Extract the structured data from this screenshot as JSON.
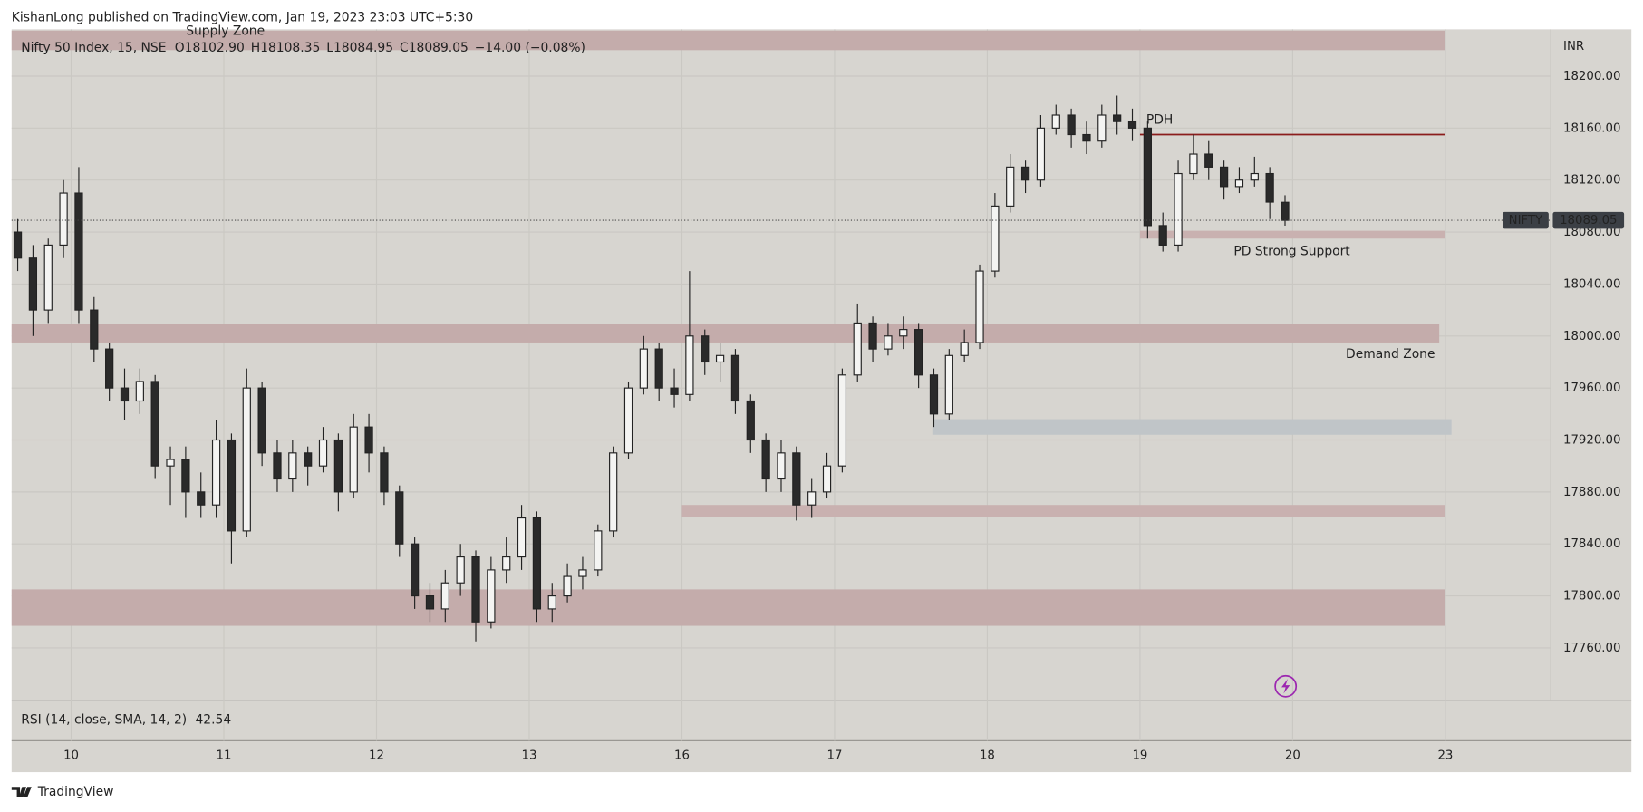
{
  "header": "KishanLong published on TradingView.com, Jan 19, 2023 23:03 UTC+5:30",
  "footer": "TradingView",
  "chart_data": {
    "type": "candlestick",
    "legend": {
      "symbol": "Nifty 50 Index, 15, NSE",
      "open": "O18102.90",
      "high": "H18108.35",
      "low": "L18084.95",
      "close": "C18089.05",
      "change": "−14.00 (−0.08%)"
    },
    "currency": "INR",
    "price_tag": {
      "name": "NIFTY",
      "value": "18089.05"
    },
    "rsi": {
      "label": "RSI (14, close, SMA, 14, 2)",
      "value": "42.54"
    },
    "xlim": [
      -0.39,
      9.69
    ],
    "xticks": [
      {
        "value": 0,
        "label": "10"
      },
      {
        "value": 1,
        "label": "11"
      },
      {
        "value": 2,
        "label": "12"
      },
      {
        "value": 3,
        "label": "13"
      },
      {
        "value": 4,
        "label": "16"
      },
      {
        "value": 5,
        "label": "17"
      },
      {
        "value": 6,
        "label": "18"
      },
      {
        "value": 7,
        "label": "19"
      },
      {
        "value": 8,
        "label": "20"
      },
      {
        "value": 9,
        "label": "23"
      }
    ],
    "ylim": [
      17720,
      18236
    ],
    "yticks": [
      {
        "value": 17760,
        "label": "17760.00"
      },
      {
        "value": 17800,
        "label": "17800.00"
      },
      {
        "value": 17840,
        "label": "17840.00"
      },
      {
        "value": 17880,
        "label": "17880.00"
      },
      {
        "value": 17920,
        "label": "17920.00"
      },
      {
        "value": 17960,
        "label": "17960.00"
      },
      {
        "value": 18000,
        "label": "18000.00"
      },
      {
        "value": 18040,
        "label": "18040.00"
      },
      {
        "value": 18080,
        "label": "18080.00"
      },
      {
        "value": 18120,
        "label": "18120.00"
      },
      {
        "value": 18160,
        "label": "18160.00"
      },
      {
        "value": 18200,
        "label": "18200.00"
      }
    ],
    "grid": true,
    "x": [
      -0.35,
      -0.25,
      -0.15,
      -0.05,
      0.05,
      0.15,
      0.25,
      0.35,
      0.45,
      0.55,
      0.65,
      0.75,
      0.85,
      0.95,
      1.05,
      1.15,
      1.25,
      1.35,
      1.45,
      1.55,
      1.65,
      1.75,
      1.85,
      1.95,
      2.05,
      2.15,
      2.25,
      2.35,
      2.45,
      2.55,
      2.65,
      2.75,
      2.85,
      2.95,
      3.05,
      3.15,
      3.25,
      3.35,
      3.45,
      3.55,
      3.65,
      3.75,
      3.85,
      3.95,
      4.05,
      4.15,
      4.25,
      4.35,
      4.45,
      4.55,
      4.65,
      4.75,
      4.85,
      4.95,
      5.05,
      5.15,
      5.25,
      5.35,
      5.45,
      5.55,
      5.65,
      5.75,
      5.85,
      5.95,
      6.05,
      6.15,
      6.25,
      6.35,
      6.45,
      6.55,
      6.65,
      6.75,
      6.85,
      6.95,
      7.05,
      7.15,
      7.25,
      7.35,
      7.45,
      7.55,
      7.65,
      7.75,
      7.85,
      7.95
    ],
    "open": [
      18080,
      18060,
      18020,
      18070,
      18110,
      18020,
      17990,
      17960,
      17950,
      17965,
      17900,
      17905,
      17880,
      17870,
      17920,
      17850,
      17960,
      17910,
      17890,
      17910,
      17900,
      17920,
      17880,
      17930,
      17910,
      17880,
      17840,
      17800,
      17790,
      17810,
      17830,
      17780,
      17820,
      17830,
      17860,
      17790,
      17800,
      17815,
      17820,
      17850,
      17910,
      17960,
      17990,
      17960,
      17955,
      18000,
      17980,
      17985,
      17950,
      17920,
      17890,
      17910,
      17870,
      17880,
      17900,
      17970,
      18010,
      17990,
      18000,
      18005,
      17970,
      17940,
      17985,
      17995,
      18050,
      18100,
      18130,
      18120,
      18160,
      18170,
      18155,
      18150,
      18170,
      18165,
      18160,
      18085,
      18070,
      18125,
      18140,
      18130,
      18115,
      18120,
      18125,
      18102.9
    ],
    "high": [
      18090,
      18070,
      18075,
      18120,
      18130,
      18030,
      17995,
      17975,
      17975,
      17970,
      17915,
      17915,
      17895,
      17935,
      17925,
      17975,
      17965,
      17920,
      17920,
      17915,
      17930,
      17925,
      17940,
      17940,
      17915,
      17885,
      17845,
      17810,
      17820,
      17840,
      17835,
      17830,
      17845,
      17870,
      17865,
      17810,
      17825,
      17830,
      17855,
      17915,
      17965,
      18000,
      17995,
      17975,
      18050,
      18005,
      17995,
      17990,
      17955,
      17925,
      17920,
      17915,
      17890,
      17910,
      17975,
      18025,
      18015,
      18010,
      18015,
      18010,
      17975,
      17990,
      18005,
      18055,
      18110,
      18140,
      18135,
      18170,
      18178,
      18175,
      18165,
      18178,
      18185,
      18175,
      18165,
      18095,
      18135,
      18155,
      18150,
      18135,
      18130,
      18138,
      18130,
      18108.35
    ],
    "low": [
      18050,
      18000,
      18010,
      18060,
      18010,
      17980,
      17950,
      17935,
      17940,
      17890,
      17870,
      17860,
      17860,
      17860,
      17825,
      17845,
      17900,
      17880,
      17880,
      17885,
      17895,
      17865,
      17875,
      17895,
      17870,
      17830,
      17790,
      17780,
      17780,
      17800,
      17765,
      17775,
      17810,
      17820,
      17780,
      17780,
      17795,
      17805,
      17815,
      17845,
      17905,
      17955,
      17950,
      17945,
      17950,
      17970,
      17965,
      17940,
      17910,
      17880,
      17880,
      17858,
      17860,
      17875,
      17895,
      17965,
      17980,
      17985,
      17990,
      17960,
      17930,
      17935,
      17980,
      17990,
      18045,
      18095,
      18110,
      18115,
      18155,
      18145,
      18140,
      18145,
      18155,
      18150,
      18075,
      18065,
      18065,
      18120,
      18120,
      18105,
      18110,
      18115,
      18090,
      18084.95
    ],
    "close": [
      18060,
      18020,
      18070,
      18110,
      18020,
      17990,
      17960,
      17950,
      17965,
      17900,
      17905,
      17880,
      17870,
      17920,
      17850,
      17960,
      17910,
      17890,
      17910,
      17900,
      17920,
      17880,
      17930,
      17910,
      17880,
      17840,
      17800,
      17790,
      17810,
      17830,
      17780,
      17820,
      17830,
      17860,
      17790,
      17800,
      17815,
      17820,
      17850,
      17910,
      17960,
      17990,
      17960,
      17955,
      18000,
      17980,
      17985,
      17950,
      17920,
      17890,
      17910,
      17870,
      17880,
      17900,
      17970,
      18010,
      17990,
      18000,
      18005,
      17970,
      17940,
      17985,
      17995,
      18050,
      18100,
      18130,
      18120,
      18160,
      18170,
      18155,
      18150,
      18170,
      18165,
      18160,
      18085,
      18070,
      18125,
      18140,
      18130,
      18115,
      18120,
      18125,
      18103.05,
      18089.05
    ],
    "zones": [
      {
        "from": 18235,
        "to": 18220,
        "x0": -0.39,
        "x1": 9.0,
        "color": "#c4acab"
      },
      {
        "from": 18009,
        "to": 17995,
        "x0": -0.39,
        "x1": 8.96,
        "color": "#c4acab"
      },
      {
        "from": 18081,
        "to": 18075,
        "x0": 7.0,
        "x1": 9.0,
        "color": "#c9b1b0"
      },
      {
        "from": 17936,
        "to": 17924,
        "x0": 5.64,
        "x1": 9.04,
        "color": "#c0c5c8"
      },
      {
        "from": 17870,
        "to": 17861,
        "x0": 4.0,
        "x1": 9.0,
        "color": "#c9b1b0"
      },
      {
        "from": 17805,
        "to": 17777,
        "x0": -0.39,
        "x1": 9.0,
        "color": "#c4acab"
      }
    ],
    "pdh": {
      "label": "PDH",
      "value": 18155,
      "x0": 7.0,
      "x1": 9.0,
      "color": "#8b1c1c"
    },
    "annotations": [
      "Supply Zone",
      "PD Strong Support",
      "Demand Zone"
    ]
  }
}
